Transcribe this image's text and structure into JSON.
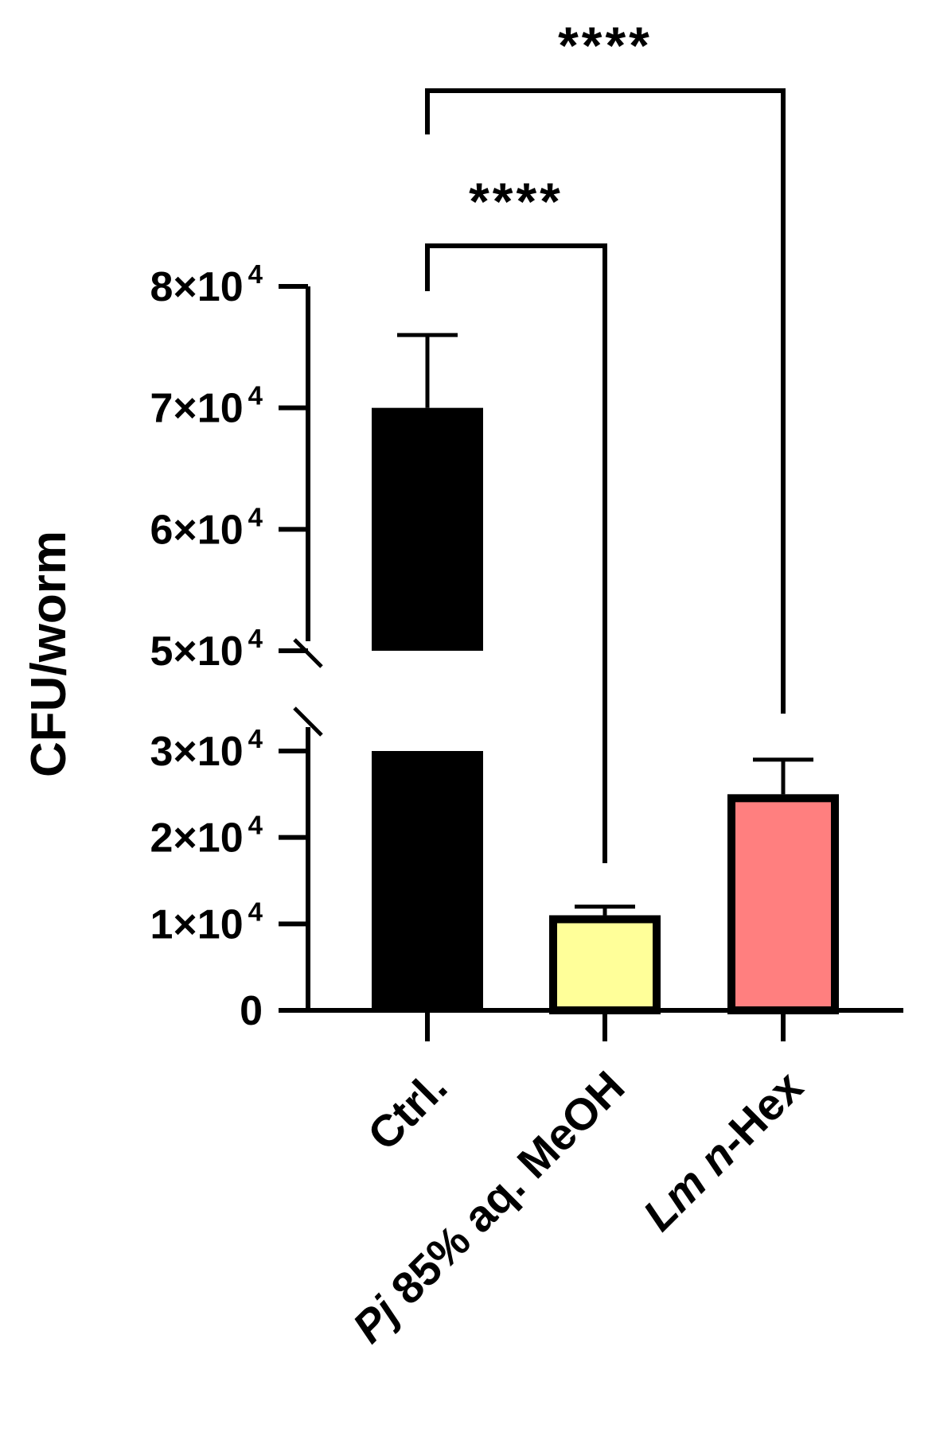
{
  "chart_data": {
    "type": "bar",
    "ylabel": "CFU/worm",
    "categories": [
      "Ctrl.",
      "Pj 85% aq. MeOH",
      "Lm n-Hex"
    ],
    "category_labels": [
      {
        "italic": "",
        "plain": "Ctrl."
      },
      {
        "italic": "Pj",
        "plain": " 85% aq. MeOH"
      },
      {
        "italic": "Lm n",
        "plain": "-Hex"
      }
    ],
    "values": [
      70000,
      11000,
      25000
    ],
    "errors": [
      6000,
      1000,
      4000
    ],
    "colors": [
      "#000000",
      "#ffff99",
      "#ff7f7f"
    ],
    "y_axis_break": [
      30000,
      50000
    ],
    "yticks": [
      {
        "value": 0,
        "mantissa": "0",
        "exp": ""
      },
      {
        "value": 10000,
        "mantissa": "1×10",
        "exp": "4"
      },
      {
        "value": 20000,
        "mantissa": "2×10",
        "exp": "4"
      },
      {
        "value": 30000,
        "mantissa": "3×10",
        "exp": "4"
      },
      {
        "value": 50000,
        "mantissa": "5×10",
        "exp": "4"
      },
      {
        "value": 60000,
        "mantissa": "6×10",
        "exp": "4"
      },
      {
        "value": 70000,
        "mantissa": "7×10",
        "exp": "4"
      },
      {
        "value": 80000,
        "mantissa": "8×10",
        "exp": "4"
      }
    ],
    "significance": [
      {
        "from": 0,
        "to": 1,
        "label": "****"
      },
      {
        "from": 0,
        "to": 2,
        "label": "****"
      }
    ]
  }
}
